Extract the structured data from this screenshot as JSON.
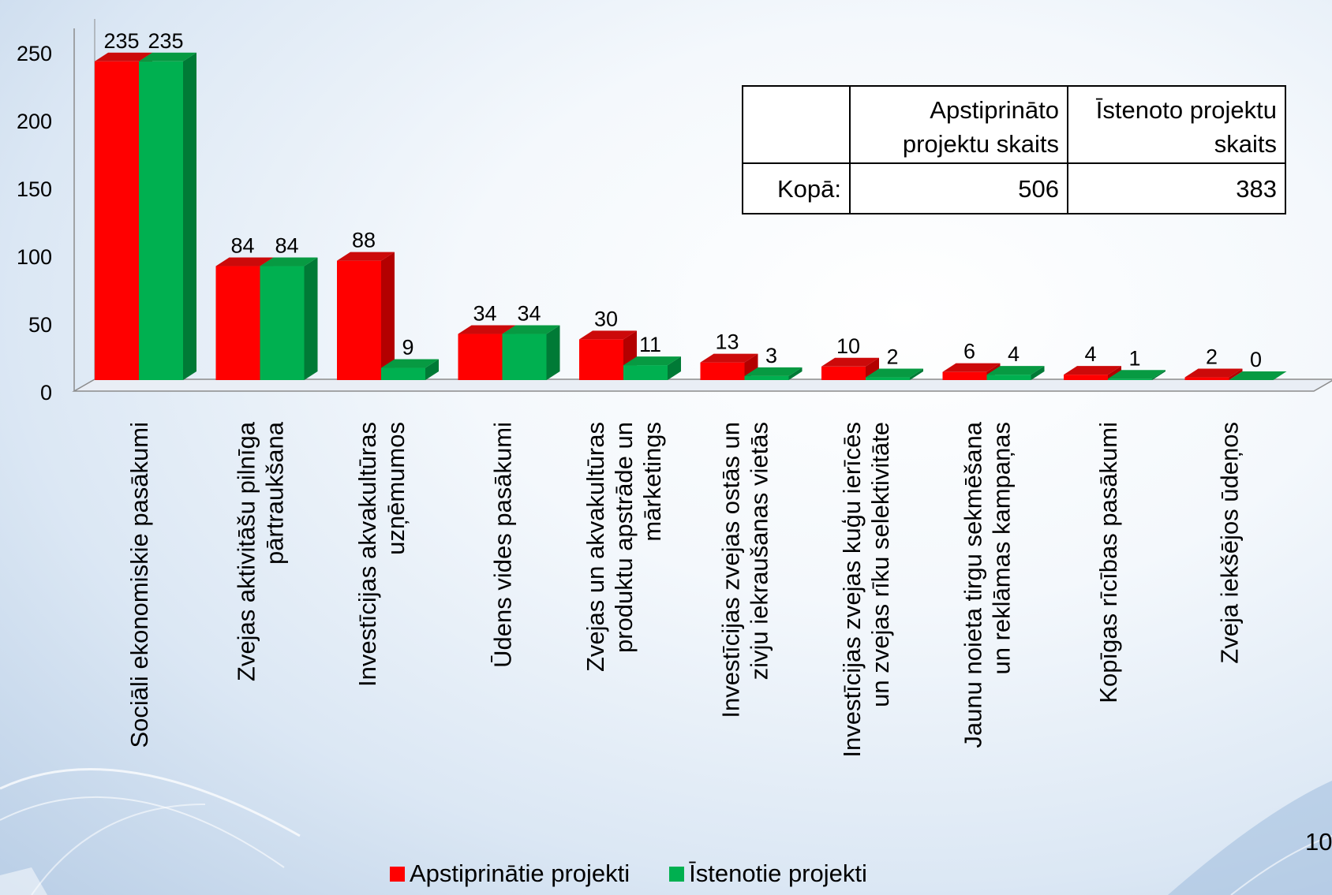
{
  "colors": {
    "series1_front": "#ff0000",
    "series1_top": "#cc0a0a",
    "series1_side": "#b30000",
    "series2_front": "#00b050",
    "series2_top": "#079a42",
    "series2_side": "#007a36"
  },
  "chart_data": {
    "type": "bar",
    "style": "3d-clustered-column",
    "categories": [
      [
        "Sociāli ekonomiskie pasākumi"
      ],
      [
        "Zvejas aktivitāšu pilnīga",
        "pārtraukšana"
      ],
      [
        "Investīcijas akvakultūras",
        "uzņēmumos"
      ],
      [
        "Ūdens vides pasākumi"
      ],
      [
        "Zvejas un akvakultūras",
        "produktu apstrāde un",
        "mārketings"
      ],
      [
        "Investīcijas zvejas ostās un",
        "zivju iekraušanas vietās"
      ],
      [
        "Investīcijas zvejas kuģu ierīcēs",
        "un zvejas rīku selektivitāte"
      ],
      [
        "Jaunu noieta tirgu sekmēšana",
        "un reklāmas kampaņas"
      ],
      [
        "Kopīgas rīcības pasākumi"
      ],
      [
        "Zveja iekšējos ūdeņos"
      ]
    ],
    "series": [
      {
        "name": "Apstiprinātie projekti",
        "values": [
          235,
          84,
          88,
          34,
          30,
          13,
          10,
          6,
          4,
          2
        ]
      },
      {
        "name": "Īstenotie projekti",
        "values": [
          235,
          84,
          9,
          34,
          11,
          3,
          2,
          4,
          1,
          0
        ]
      }
    ],
    "yticks": [
      "0",
      "50",
      "100",
      "150",
      "200",
      "250"
    ],
    "ylim": [
      0,
      250
    ],
    "grid": false,
    "legend_position": "bottom"
  },
  "summary_table": {
    "header": [
      "",
      "Apstiprināto projektu skaits",
      "Īstenoto projektu skaits"
    ],
    "row_label": "Kopā:",
    "approved_total": "506",
    "implemented_total": "383"
  },
  "page_number": "10"
}
